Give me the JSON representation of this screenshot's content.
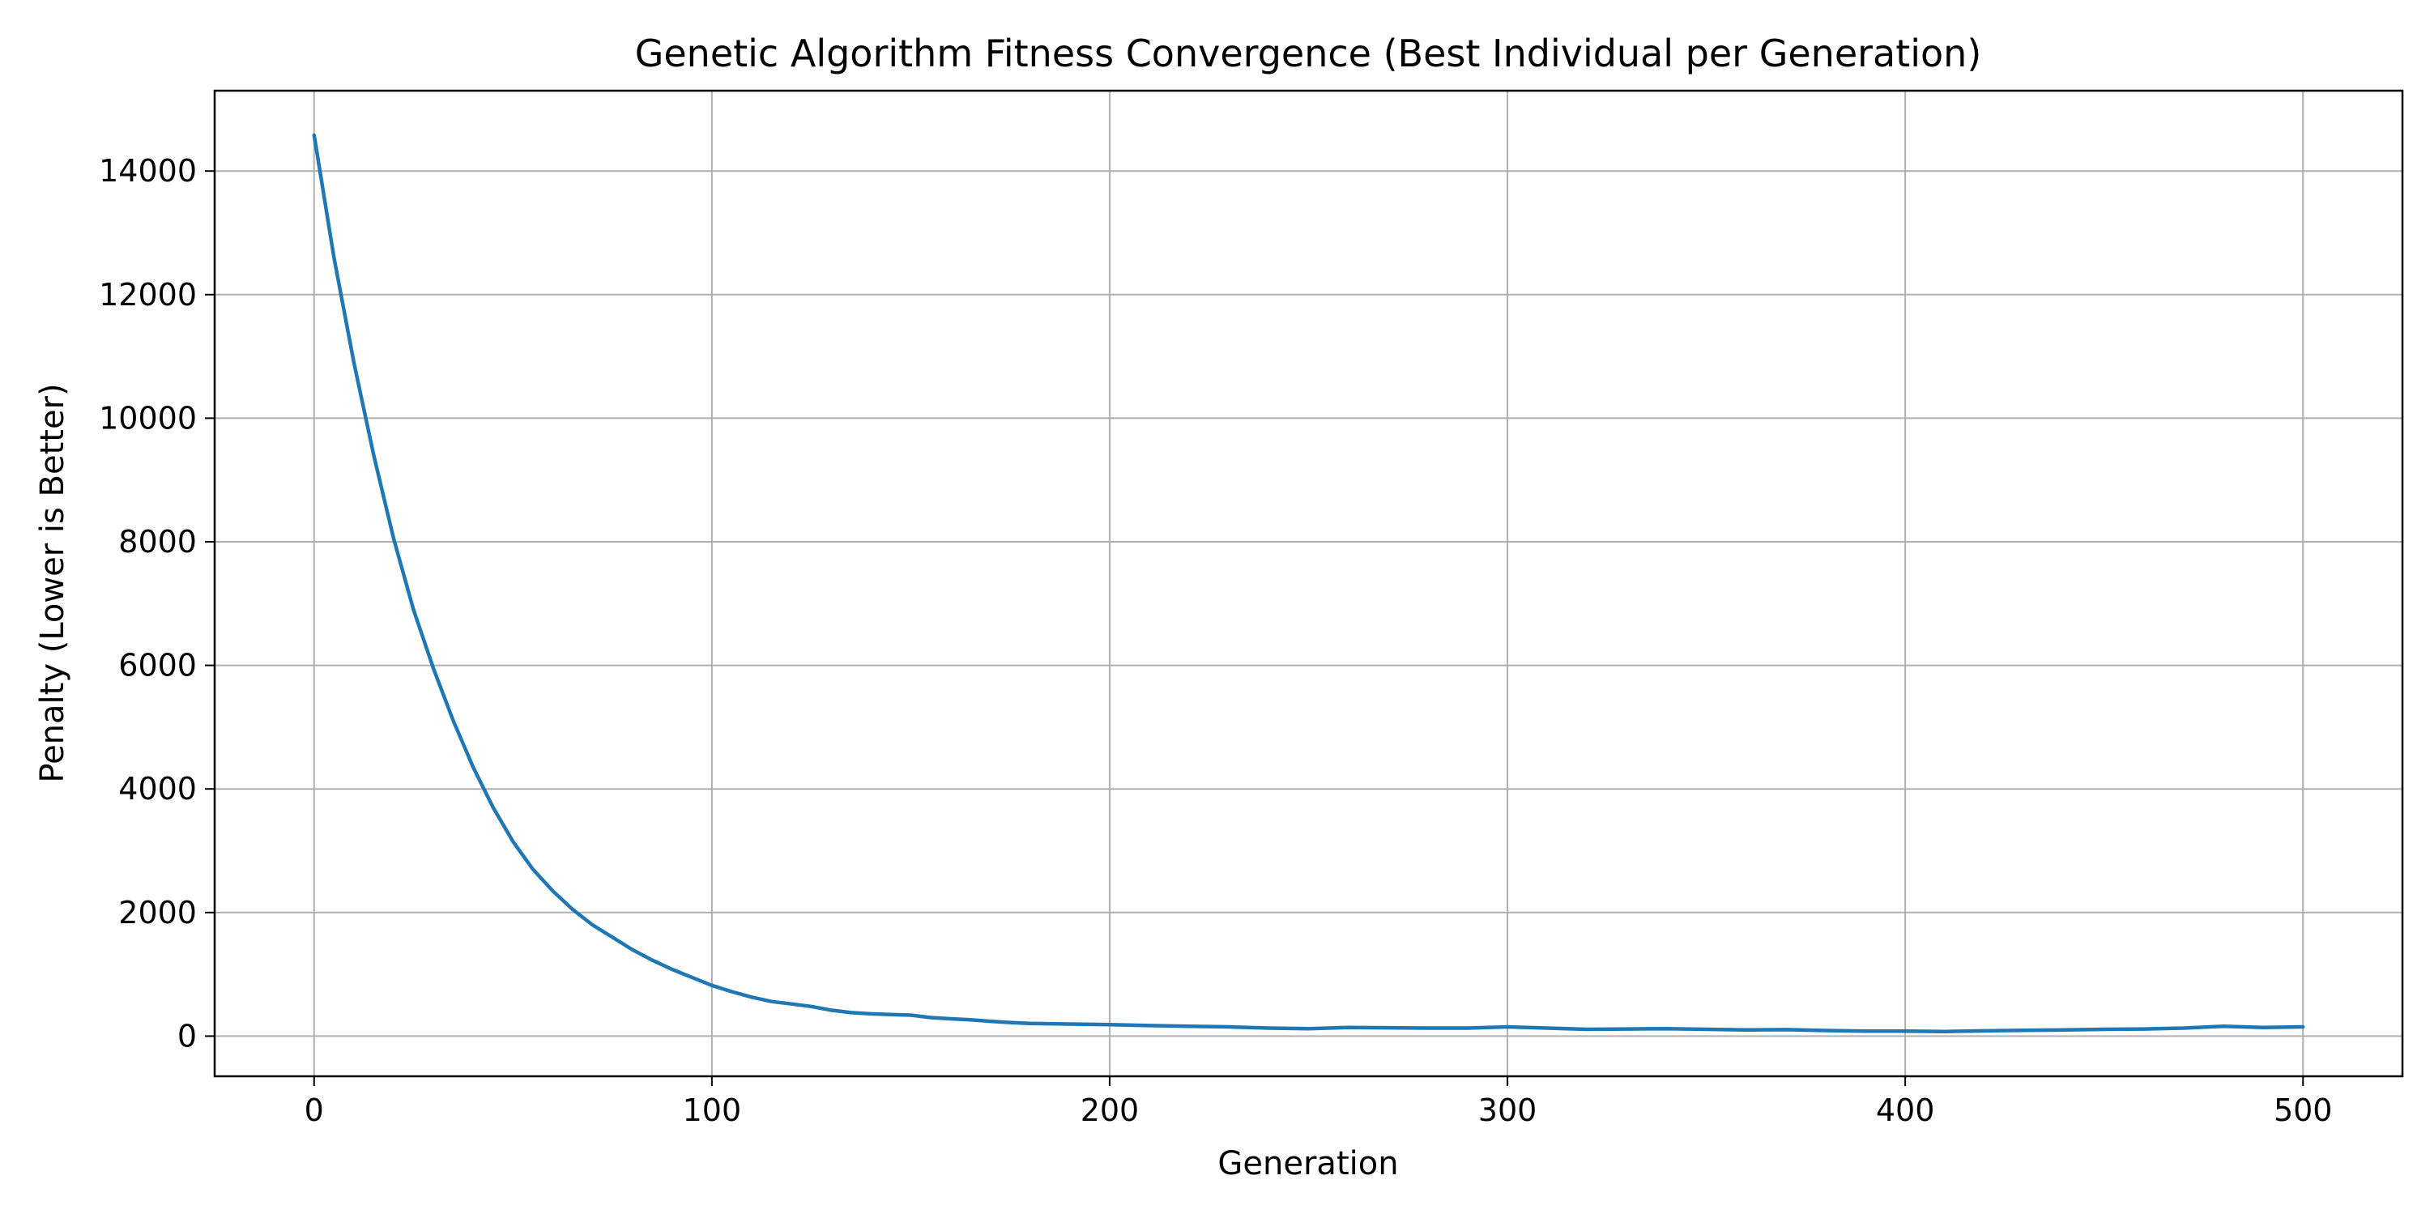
{
  "chart_data": {
    "type": "line",
    "title": "Genetic Algorithm Fitness Convergence (Best Individual per Generation)",
    "xlabel": "Generation",
    "ylabel": "Penalty (Lower is Better)",
    "xlim": [
      -25,
      525
    ],
    "ylim": [
      -650,
      15300
    ],
    "xticks": [
      0,
      100,
      200,
      300,
      400,
      500
    ],
    "yticks": [
      0,
      2000,
      4000,
      6000,
      8000,
      10000,
      12000,
      14000
    ],
    "grid": true,
    "line_color": "#1f77b4",
    "series": [
      {
        "x": [
          0,
          5,
          10,
          15,
          20,
          25,
          30,
          35,
          40,
          45,
          50,
          55,
          60,
          65,
          70,
          75,
          80,
          85,
          90,
          95,
          100,
          105,
          110,
          115,
          120,
          125,
          130,
          135,
          140,
          145,
          150,
          155,
          160,
          165,
          170,
          175,
          180,
          185,
          190,
          195,
          200,
          210,
          220,
          230,
          240,
          250,
          260,
          270,
          280,
          290,
          300,
          310,
          320,
          330,
          340,
          350,
          360,
          370,
          380,
          390,
          400,
          410,
          420,
          430,
          440,
          450,
          460,
          470,
          480,
          490,
          500
        ],
        "y": [
          14580,
          12600,
          10900,
          9400,
          8050,
          6900,
          5950,
          5100,
          4350,
          3700,
          3150,
          2700,
          2350,
          2050,
          1800,
          1600,
          1400,
          1230,
          1080,
          950,
          820,
          720,
          630,
          560,
          520,
          480,
          420,
          380,
          360,
          350,
          340,
          300,
          280,
          265,
          240,
          220,
          205,
          200,
          195,
          190,
          185,
          170,
          160,
          150,
          130,
          120,
          140,
          135,
          130,
          130,
          150,
          130,
          110,
          115,
          120,
          110,
          100,
          105,
          90,
          80,
          80,
          75,
          85,
          95,
          100,
          110,
          115,
          130,
          160,
          140,
          150
        ]
      }
    ]
  }
}
